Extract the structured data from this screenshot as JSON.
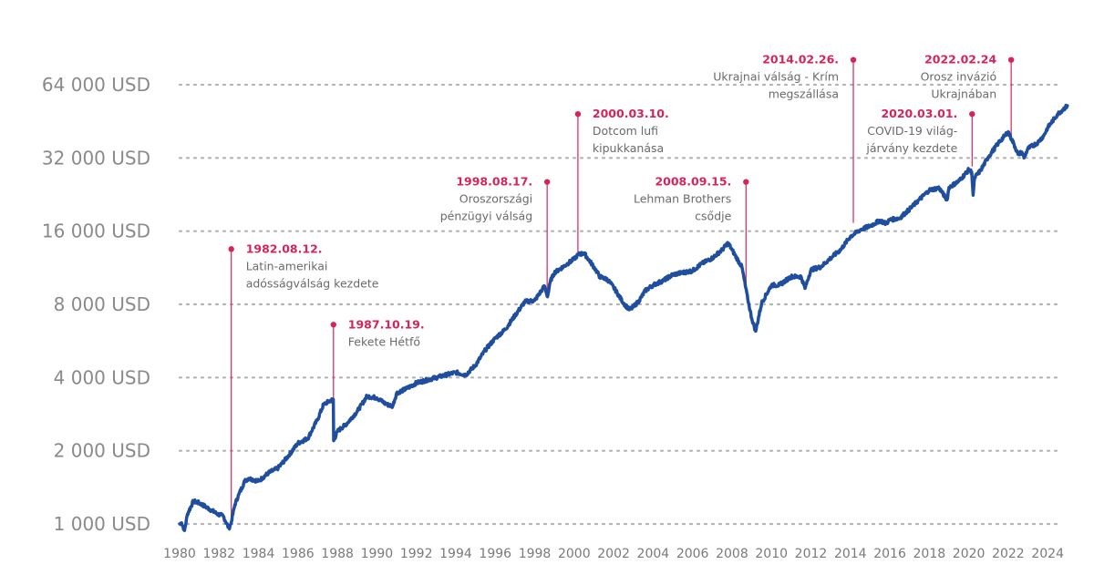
{
  "colors": {
    "series": "#1f4e9e",
    "annotation": "#d6245a",
    "grid": "#b4b4b4"
  },
  "chart_data": {
    "type": "line",
    "title": "",
    "xlabel": "",
    "ylabel": "",
    "y_scale": "log2",
    "ylim": [
      900,
      70000
    ],
    "xlim": [
      1980,
      2025.2
    ],
    "grid": true,
    "y_ticks": [
      1000,
      2000,
      4000,
      8000,
      16000,
      32000,
      64000
    ],
    "y_tick_labels": [
      "1 000 USD",
      "2 000 USD",
      "4 000 USD",
      "8 000 USD",
      "16 000 USD",
      "32 000 USD",
      "64 000 USD"
    ],
    "x_ticks": [
      "1980",
      "1982",
      "1984",
      "1986",
      "1988",
      "1990",
      "1992",
      "1994",
      "1996",
      "1998",
      "2000",
      "2002",
      "2004",
      "2006",
      "2008",
      "2010",
      "2012",
      "2014",
      "2016",
      "2018",
      "2020",
      "2022",
      "2024"
    ],
    "series": [
      {
        "x": [
          1980.0,
          1980.1,
          1980.25,
          1980.4,
          1980.7,
          1981.0,
          1981.3,
          1981.6,
          1981.9,
          1982.2,
          1982.5,
          1982.6,
          1982.8,
          1983.0,
          1983.3,
          1983.5,
          1984.0,
          1984.5,
          1985.0,
          1985.5,
          1986.0,
          1986.5,
          1987.0,
          1987.3,
          1987.6,
          1987.79,
          1987.81,
          1988.0,
          1988.5,
          1989.0,
          1989.5,
          1990.0,
          1990.5,
          1990.8,
          1991.0,
          1991.5,
          1992.0,
          1993.0,
          1994.0,
          1994.5,
          1995.0,
          1995.5,
          1996.0,
          1996.5,
          1997.0,
          1997.5,
          1998.0,
          1998.5,
          1998.65,
          1998.8,
          1999.0,
          1999.5,
          2000.0,
          2000.2,
          2000.5,
          2001.0,
          2001.3,
          2001.7,
          2002.0,
          2002.5,
          2002.8,
          2003.0,
          2003.3,
          2003.6,
          2004.0,
          2004.5,
          2005.0,
          2006.0,
          2006.5,
          2007.0,
          2007.5,
          2007.8,
          2008.0,
          2008.5,
          2008.8,
          2009.0,
          2009.2,
          2009.5,
          2010.0,
          2010.4,
          2011.0,
          2011.5,
          2011.7,
          2012.0,
          2012.5,
          2013.0,
          2013.5,
          2014.0,
          2014.5,
          2015.0,
          2015.5,
          2015.8,
          2016.0,
          2016.5,
          2017.0,
          2017.5,
          2018.0,
          2018.5,
          2018.9,
          2019.0,
          2019.5,
          2020.0,
          2020.15,
          2020.22,
          2020.3,
          2020.6,
          2021.0,
          2021.5,
          2022.0,
          2022.3,
          2022.5,
          2022.7,
          2022.8,
          2023.0,
          2023.5,
          2023.8,
          2024.0,
          2024.5,
          2025.0
        ],
        "y": [
          1000,
          1010,
          940,
          1100,
          1240,
          1220,
          1180,
          1140,
          1100,
          1080,
          960,
          1000,
          1200,
          1320,
          1500,
          1540,
          1500,
          1620,
          1700,
          1900,
          2150,
          2250,
          2700,
          3100,
          3200,
          3250,
          2200,
          2400,
          2600,
          2900,
          3350,
          3300,
          3100,
          3050,
          3450,
          3600,
          3800,
          4000,
          4200,
          4100,
          4500,
          5200,
          5800,
          6300,
          7200,
          8200,
          8300,
          9500,
          8600,
          10000,
          10800,
          11500,
          12300,
          12800,
          13000,
          11400,
          10400,
          10100,
          9400,
          8100,
          7600,
          7800,
          8300,
          9100,
          9600,
          10000,
          10600,
          11000,
          11800,
          12400,
          13400,
          14300,
          13400,
          11400,
          8400,
          7000,
          6200,
          8100,
          9600,
          9600,
          10400,
          10400,
          9300,
          11100,
          11400,
          12400,
          13400,
          15200,
          16200,
          16800,
          17700,
          17200,
          17800,
          18100,
          19700,
          21600,
          23600,
          24100,
          21500,
          24200,
          25700,
          28600,
          28000,
          22500,
          26600,
          28400,
          32400,
          36800,
          41000,
          36300,
          33100,
          33800,
          32000,
          35000,
          37000,
          39500,
          42600,
          48400,
          52500
        ]
      }
    ],
    "annotations": [
      {
        "x": 1982.62,
        "y": 1000,
        "top": 13500,
        "date": "1982.08.12.",
        "text": [
          "Latin-amerikai",
          "adósságválság kezdete"
        ],
        "align": "left"
      },
      {
        "x": 1987.8,
        "y": 3250,
        "top": 6600,
        "date": "1987.10.19.",
        "text": [
          "Fekete Hétfő"
        ],
        "align": "left"
      },
      {
        "x": 1998.63,
        "y": 8600,
        "top": 25500,
        "date": "1998.08.17.",
        "text": [
          "Oroszországi",
          "pénzügyi válság"
        ],
        "align": "right"
      },
      {
        "x": 2000.19,
        "y": 13000,
        "top": 48500,
        "date": "2000.03.10.",
        "text": [
          "Dotcom lufi",
          "kipukkanása"
        ],
        "align": "left"
      },
      {
        "x": 2008.71,
        "y": 9000,
        "top": 25500,
        "date": "2008.09.15.",
        "text": [
          "Lehman Brothers",
          "csődje"
        ],
        "align": "right"
      },
      {
        "x": 2014.15,
        "y": 17300,
        "top": 81000,
        "date": "2014.02.26.",
        "text": [
          "Ukrajnai válság - Krím",
          "megszállása"
        ],
        "align": "right"
      },
      {
        "x": 2020.17,
        "y": 29500,
        "top": 48500,
        "date": "2020.03.01.",
        "text": [
          "COVID-19 világ-",
          "járvány kezdete"
        ],
        "align": "right"
      },
      {
        "x": 2022.15,
        "y": 40000,
        "top": 81000,
        "date": "2022.02.24",
        "text": [
          "Orosz invázió",
          "Ukrajnában"
        ],
        "align": "right"
      }
    ]
  }
}
